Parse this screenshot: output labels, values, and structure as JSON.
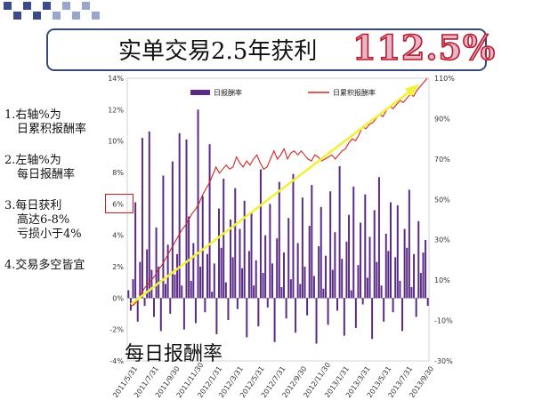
{
  "title": {
    "text": "实单交易2.5年获利",
    "highlight": "112.5%"
  },
  "notes": [
    {
      "lines": [
        "1.右轴%为",
        "日累积报酬率"
      ]
    },
    {
      "lines": [
        "2.左轴%为",
        "每日报酬率"
      ]
    },
    {
      "lines": [
        "3.每日获利",
        "高达6-8%",
        "亏损小于4%"
      ]
    },
    {
      "lines": [
        "4.交易多空皆宜"
      ]
    }
  ],
  "bottom_label": "每日报酬率",
  "colors": {
    "bars": "#5b2a86",
    "line": "#d62222",
    "trend_arrow": "#f2f23a",
    "callout": "#d21a1a",
    "title_highlight_fill": "#e8b6c6",
    "title_highlight_stroke": "#b8182e"
  },
  "chart_data": {
    "type": "bar",
    "series": [
      {
        "name": "日报酬率",
        "kind": "bar",
        "axis": "left"
      },
      {
        "name": "日累积报酬率",
        "kind": "line",
        "axis": "right"
      }
    ],
    "legend_position": "top",
    "left_axis": {
      "range": [
        -4,
        14
      ],
      "ticks": [
        "14%",
        "12%",
        "10%",
        "8%",
        "6%",
        "4%",
        "2%",
        "0%",
        "-2%",
        "-4%"
      ]
    },
    "right_axis": {
      "range": [
        -30,
        110
      ],
      "ticks": [
        "110%",
        "90%",
        "70%",
        "50%",
        "30%",
        "10%",
        "-10%",
        "-30%"
      ]
    },
    "x_tick_labels": [
      "2011/5/31",
      "2011/7/31",
      "2011/9/30",
      "2011/11/30",
      "2012/1/31",
      "2012/3/31",
      "2012/5/31",
      "2012/7/31",
      "2012/9/30",
      "2012/11/30",
      "2013/1/31",
      "2013/3/31",
      "2013/5/31",
      "2013/7/31",
      "2013/9/30"
    ],
    "daily_return_samples": [
      0.5,
      -0.8,
      1.2,
      6.1,
      -1.5,
      2.3,
      10.2,
      -0.5,
      3.1,
      10.6,
      1.8,
      -1.2,
      4.5,
      2.0,
      -2.1,
      7.8,
      0.9,
      3.4,
      -1.0,
      8.7,
      1.5,
      2.8,
      10.5,
      0.8,
      -2.0,
      10.1,
      5.2,
      1.1,
      3.5,
      -1.6,
      12.0,
      2.0,
      6.5,
      -0.9,
      2.8,
      9.8,
      0.4,
      2.2,
      -2.3,
      5.7,
      3.2,
      7.6,
      1.0,
      -1.4,
      5.0,
      2.6,
      7.0,
      -0.7,
      4.4,
      1.9,
      6.2,
      -2.5,
      3.0,
      5.5,
      0.8,
      2.4,
      -1.8,
      8.2,
      1.6,
      4.0,
      -0.6,
      6.0,
      2.2,
      -2.8,
      3.8,
      7.4,
      0.7,
      2.9,
      -1.3,
      5.1,
      1.2,
      7.9,
      -2.2,
      3.5,
      0.9,
      6.4,
      2.0,
      -1.1,
      4.6,
      7.2,
      1.4,
      -2.9,
      3.3,
      5.8,
      0.6,
      2.7,
      -1.7,
      6.8,
      1.8,
      4.2,
      -0.8,
      8.4,
      2.5,
      -2.4,
      3.6,
      5.3,
      0.5,
      7.1,
      -1.9,
      2.1,
      4.8,
      -0.4,
      6.6,
      1.3,
      3.9,
      -2.6,
      5.6,
      2.3,
      7.7,
      0.8,
      -1.5,
      4.1,
      3.0,
      6.1,
      -0.9,
      2.6,
      5.9,
      1.1,
      -2.1,
      4.4,
      3.2,
      6.9,
      0.7,
      2.8,
      -1.2,
      4.9,
      1.6,
      2.9,
      3.7,
      -0.5
    ],
    "cumulative_return_samples": [
      -3,
      -2,
      0,
      3,
      6,
      8,
      10,
      12,
      15,
      17,
      20,
      23,
      26,
      29,
      32,
      35,
      37,
      40,
      43,
      45,
      48,
      52,
      55,
      58,
      62,
      66,
      63,
      65,
      67,
      65,
      66,
      71,
      68,
      66,
      69,
      67,
      70,
      72,
      68,
      65,
      66,
      70,
      74,
      70,
      72,
      75,
      70,
      73,
      74,
      72,
      74,
      72,
      70,
      69,
      72,
      71,
      69,
      70,
      71,
      72,
      70,
      72,
      74,
      75,
      78,
      80,
      79,
      82,
      86,
      85,
      87,
      88,
      90,
      92,
      91,
      94,
      96,
      95,
      97,
      99,
      98,
      100,
      102,
      101,
      104,
      106,
      108,
      110
    ],
    "trend_arrow": {
      "from": [
        0,
        -2
      ],
      "to": [
        1,
        106
      ]
    }
  }
}
